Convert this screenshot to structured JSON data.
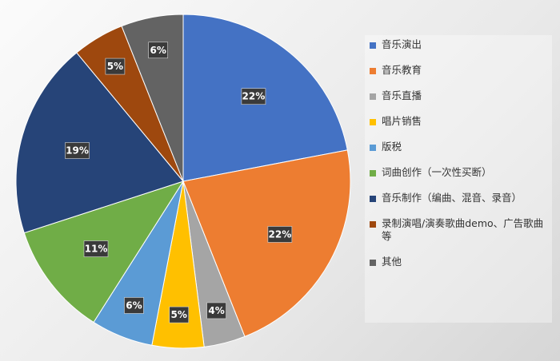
{
  "chart_data": {
    "type": "pie",
    "title": "",
    "legend_position": "right",
    "slices": [
      {
        "name": "音乐演出",
        "value": 22,
        "label": "22%",
        "color": "#4472C4"
      },
      {
        "name": "音乐教育",
        "value": 22,
        "label": "22%",
        "color": "#ED7D31"
      },
      {
        "name": "音乐直播",
        "value": 4,
        "label": "4%",
        "color": "#A5A5A5"
      },
      {
        "name": "唱片销售",
        "value": 5,
        "label": "5%",
        "color": "#FFC000"
      },
      {
        "name": "版税",
        "value": 6,
        "label": "6%",
        "color": "#5B9BD5"
      },
      {
        "name": "词曲创作（一次性买断）",
        "value": 11,
        "label": "11%",
        "color": "#70AD47"
      },
      {
        "name": "音乐制作（编曲、混音、录音）",
        "value": 19,
        "label": "19%",
        "color": "#264478"
      },
      {
        "name": "录制演唱/演奏歌曲demo、广告歌曲等",
        "value": 5,
        "label": "5%",
        "color": "#9E480E"
      },
      {
        "name": "其他",
        "value": 6,
        "label": "6%",
        "color": "#636363"
      }
    ]
  }
}
